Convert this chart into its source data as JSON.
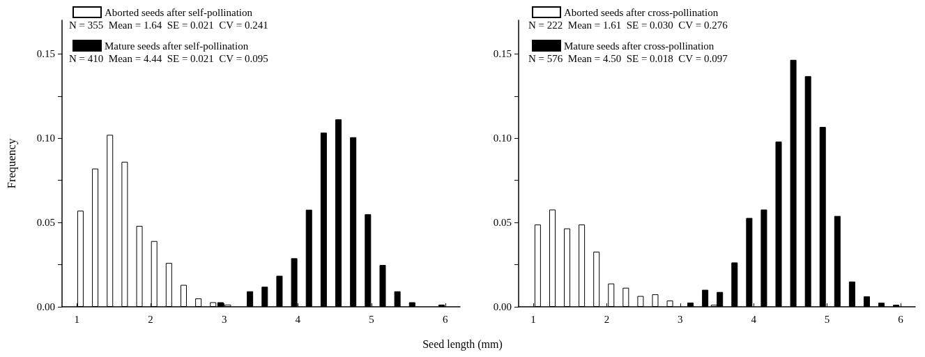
{
  "chart_data": [
    {
      "type": "bar",
      "ylabel": "Frequency",
      "xlabel": "Seed length (mm)",
      "legend": "top left",
      "annotations": [
        "N = 355  Mean = 1.64  SE = 0.021  CV = 0.241",
        "N = 410  Mean = 4.44  SE = 0.021  CV = 0.095"
      ],
      "xlim": [
        0.8,
        6.2
      ],
      "xticks": [
        1,
        2,
        3,
        4,
        5,
        6
      ],
      "ylim": [
        0,
        0.17
      ],
      "yticks": [
        {
          "value": 0,
          "label": "0.00"
        },
        {
          "value": 0.025,
          "label": null
        },
        {
          "value": 0.05,
          "label": "0.05"
        },
        {
          "value": 0.075,
          "label": null
        },
        {
          "value": 0.1,
          "label": "0.10"
        },
        {
          "value": 0.125,
          "label": null
        },
        {
          "value": 0.15,
          "label": "0.15"
        }
      ],
      "grid": false,
      "series": [
        {
          "name": "Aborted seeds after self-pollination",
          "color": "#ffffff",
          "x": [
            1.05,
            1.25,
            1.45,
            1.65,
            1.85,
            2.05,
            2.25,
            2.45,
            2.65,
            2.85,
            3.05
          ],
          "values": [
            0.057,
            0.082,
            0.102,
            0.086,
            0.048,
            0.039,
            0.026,
            0.013,
            0.005,
            0.0027,
            0.0013
          ]
        },
        {
          "name": "Mature seeds after self-pollination",
          "color": "#000000",
          "x": [
            2.95,
            3.35,
            3.55,
            3.75,
            3.95,
            4.15,
            4.35,
            4.55,
            4.75,
            4.95,
            5.15,
            5.35,
            5.55,
            5.95
          ],
          "values": [
            0.0027,
            0.0092,
            0.0119,
            0.0184,
            0.0288,
            0.0576,
            0.1033,
            0.1112,
            0.1006,
            0.0549,
            0.0248,
            0.0092,
            0.0027,
            0.0013
          ]
        }
      ]
    },
    {
      "type": "bar",
      "legend": "top left",
      "annotations": [
        "N = 222  Mean = 1.61  SE = 0.030  CV = 0.276",
        "N = 576  Mean = 4.50  SE = 0.018  CV = 0.097"
      ],
      "xlim": [
        0.8,
        6.2
      ],
      "xticks": [
        1,
        2,
        3,
        4,
        5,
        6
      ],
      "ylim": [
        0,
        0.17
      ],
      "yticks": [
        {
          "value": 0,
          "label": "0.00"
        },
        {
          "value": 0.025,
          "label": null
        },
        {
          "value": 0.05,
          "label": "0.05"
        },
        {
          "value": 0.075,
          "label": null
        },
        {
          "value": 0.1,
          "label": "0.10"
        },
        {
          "value": 0.125,
          "label": null
        },
        {
          "value": 0.15,
          "label": "0.15"
        }
      ],
      "grid": false,
      "series": [
        {
          "name": "Aborted seeds after cross-pollination",
          "color": "#ffffff",
          "x": [
            1.06,
            1.26,
            1.46,
            1.66,
            1.86,
            2.06,
            2.26,
            2.46,
            2.66,
            2.86,
            3.46
          ],
          "values": [
            0.0488,
            0.0577,
            0.0465,
            0.0488,
            0.0327,
            0.0138,
            0.0113,
            0.0064,
            0.0074,
            0.0037,
            0.0012
          ]
        },
        {
          "name": "Mature seeds after cross-pollination",
          "color": "#000000",
          "x": [
            3.14,
            3.34,
            3.54,
            3.74,
            3.94,
            4.14,
            4.34,
            4.54,
            4.74,
            4.94,
            5.14,
            5.34,
            5.54,
            5.74,
            5.94
          ],
          "values": [
            0.0025,
            0.0101,
            0.0088,
            0.0263,
            0.0527,
            0.0577,
            0.098,
            0.1465,
            0.1368,
            0.1067,
            0.0539,
            0.015,
            0.0062,
            0.0024,
            0.0012
          ]
        }
      ]
    }
  ]
}
